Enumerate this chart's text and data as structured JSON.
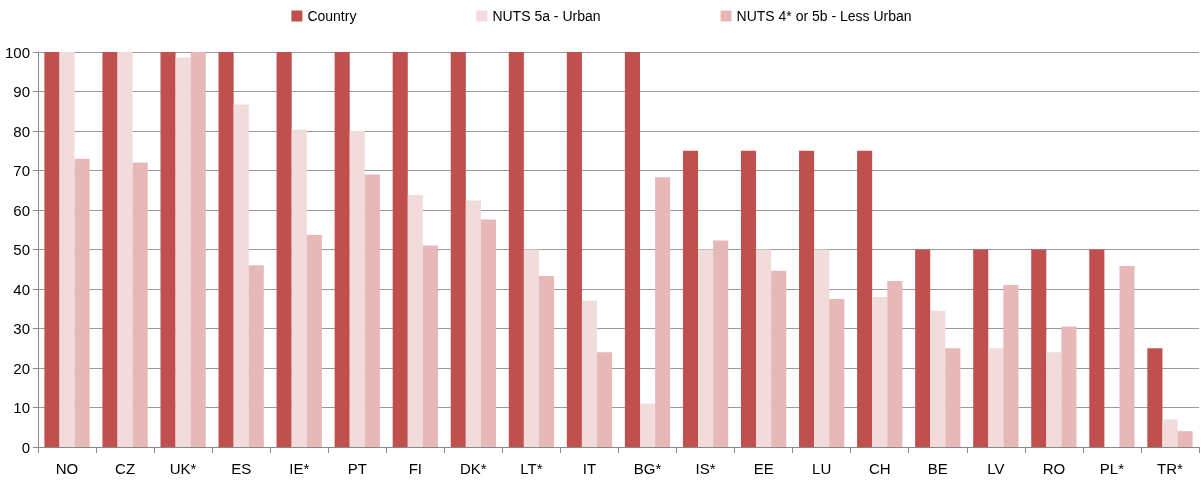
{
  "chart_data": {
    "type": "bar",
    "categories": [
      "NO",
      "CZ",
      "UK*",
      "ES",
      "IE*",
      "PT",
      "FI",
      "DK*",
      "LT*",
      "IT",
      "BG*",
      "IS*",
      "EE",
      "LU",
      "CH",
      "BE",
      "LV",
      "RO",
      "PL*",
      "TR*"
    ],
    "series": [
      {
        "name": "Country",
        "color": "#c0504d",
        "values": [
          100,
          100,
          100,
          100,
          100,
          100,
          100,
          100,
          100,
          100,
          100,
          75,
          75,
          75,
          75,
          50,
          50,
          50,
          50,
          25
        ]
      },
      {
        "name": "NUTS 5a - Urban",
        "color": "#f2dcdb",
        "values": [
          100,
          100,
          98.6,
          86.7,
          80.4,
          80,
          63.8,
          62.4,
          50,
          37,
          11,
          50,
          50,
          50,
          38,
          34.5,
          25,
          24,
          0,
          7
        ]
      },
      {
        "name": "NUTS 4* or 5b - Less Urban",
        "color": "#e6b9b8",
        "values": [
          73,
          72,
          100,
          46,
          53.7,
          69,
          51,
          57.6,
          43.3,
          24,
          68.3,
          52.3,
          44.6,
          37.5,
          42,
          25,
          41,
          30.5,
          45.8,
          4
        ]
      }
    ],
    "ylim": [
      0,
      100
    ],
    "yticks": [
      0,
      10,
      20,
      30,
      40,
      50,
      60,
      70,
      80,
      90,
      100
    ],
    "grid": "y",
    "legend": "top"
  }
}
